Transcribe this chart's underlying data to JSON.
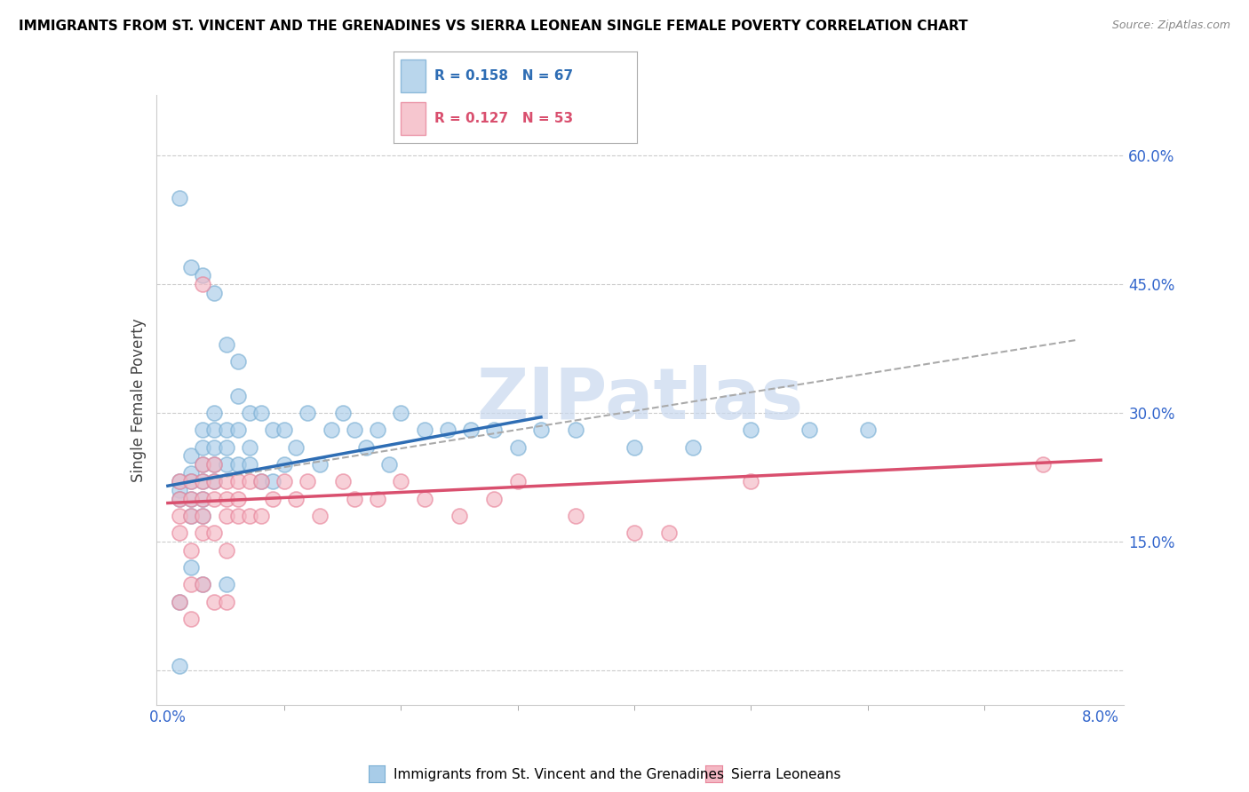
{
  "title": "IMMIGRANTS FROM ST. VINCENT AND THE GRENADINES VS SIERRA LEONEAN SINGLE FEMALE POVERTY CORRELATION CHART",
  "source": "Source: ZipAtlas.com",
  "ylabel": "Single Female Poverty",
  "xlim": [
    -0.001,
    0.082
  ],
  "ylim": [
    -0.04,
    0.67
  ],
  "xtick_positions": [
    0.0,
    0.08
  ],
  "xtick_labels": [
    "0.0%",
    "8.0%"
  ],
  "ytick_positions": [
    0.15,
    0.3,
    0.45,
    0.6
  ],
  "ytick_labels": [
    "15.0%",
    "30.0%",
    "45.0%",
    "60.0%"
  ],
  "grid_yticks": [
    0.0,
    0.15,
    0.3,
    0.45,
    0.6
  ],
  "legend_r1": "R = 0.158",
  "legend_n1": "N = 67",
  "legend_r2": "R = 0.127",
  "legend_n2": "N = 53",
  "color_blue": "#a8cce8",
  "color_blue_edge": "#7aafd4",
  "color_pink": "#f4b8c4",
  "color_pink_edge": "#e8849a",
  "color_blue_line": "#2e6db4",
  "color_pink_line": "#d94f6e",
  "color_dashed": "#aaaaaa",
  "watermark": "ZIPatlas",
  "watermark_color": "#c8d8ee",
  "blue_line_x": [
    0.0,
    0.032
  ],
  "blue_line_y": [
    0.215,
    0.295
  ],
  "pink_line_x": [
    0.0,
    0.08
  ],
  "pink_line_y": [
    0.195,
    0.245
  ],
  "dash_line_x": [
    0.0,
    0.078
  ],
  "dash_line_y": [
    0.215,
    0.385
  ],
  "blue_x": [
    0.001,
    0.001,
    0.001,
    0.001,
    0.002,
    0.002,
    0.002,
    0.002,
    0.002,
    0.002,
    0.003,
    0.003,
    0.003,
    0.003,
    0.003,
    0.003,
    0.003,
    0.004,
    0.004,
    0.004,
    0.004,
    0.004,
    0.005,
    0.005,
    0.005,
    0.005,
    0.006,
    0.006,
    0.006,
    0.007,
    0.007,
    0.007,
    0.008,
    0.008,
    0.009,
    0.009,
    0.01,
    0.01,
    0.011,
    0.012,
    0.013,
    0.014,
    0.015,
    0.016,
    0.017,
    0.018,
    0.019,
    0.02,
    0.022,
    0.024,
    0.026,
    0.028,
    0.03,
    0.032,
    0.035,
    0.04,
    0.045,
    0.05,
    0.055,
    0.06,
    0.001,
    0.002,
    0.003,
    0.004,
    0.005,
    0.006,
    0.001
  ],
  "blue_y": [
    0.22,
    0.21,
    0.2,
    0.08,
    0.25,
    0.23,
    0.22,
    0.2,
    0.18,
    0.12,
    0.28,
    0.26,
    0.24,
    0.22,
    0.2,
    0.18,
    0.1,
    0.3,
    0.28,
    0.26,
    0.24,
    0.22,
    0.28,
    0.26,
    0.24,
    0.1,
    0.32,
    0.28,
    0.24,
    0.3,
    0.26,
    0.24,
    0.3,
    0.22,
    0.28,
    0.22,
    0.28,
    0.24,
    0.26,
    0.3,
    0.24,
    0.28,
    0.3,
    0.28,
    0.26,
    0.28,
    0.24,
    0.3,
    0.28,
    0.28,
    0.28,
    0.28,
    0.26,
    0.28,
    0.28,
    0.26,
    0.26,
    0.28,
    0.28,
    0.28,
    0.55,
    0.47,
    0.46,
    0.44,
    0.38,
    0.36,
    0.005
  ],
  "pink_x": [
    0.001,
    0.001,
    0.001,
    0.001,
    0.002,
    0.002,
    0.002,
    0.002,
    0.002,
    0.003,
    0.003,
    0.003,
    0.003,
    0.003,
    0.004,
    0.004,
    0.004,
    0.004,
    0.005,
    0.005,
    0.005,
    0.005,
    0.006,
    0.006,
    0.006,
    0.007,
    0.007,
    0.008,
    0.008,
    0.009,
    0.01,
    0.011,
    0.012,
    0.013,
    0.015,
    0.016,
    0.018,
    0.02,
    0.022,
    0.025,
    0.028,
    0.03,
    0.035,
    0.04,
    0.05,
    0.001,
    0.002,
    0.003,
    0.004,
    0.005,
    0.003,
    0.075,
    0.043
  ],
  "pink_y": [
    0.22,
    0.2,
    0.18,
    0.16,
    0.22,
    0.2,
    0.18,
    0.14,
    0.1,
    0.24,
    0.22,
    0.2,
    0.18,
    0.16,
    0.24,
    0.22,
    0.2,
    0.16,
    0.22,
    0.2,
    0.18,
    0.14,
    0.22,
    0.2,
    0.18,
    0.22,
    0.18,
    0.22,
    0.18,
    0.2,
    0.22,
    0.2,
    0.22,
    0.18,
    0.22,
    0.2,
    0.2,
    0.22,
    0.2,
    0.18,
    0.2,
    0.22,
    0.18,
    0.16,
    0.22,
    0.08,
    0.06,
    0.1,
    0.08,
    0.08,
    0.45,
    0.24,
    0.16
  ],
  "bottom_label1": "Immigrants from St. Vincent and the Grenadines",
  "bottom_label2": "Sierra Leoneans"
}
